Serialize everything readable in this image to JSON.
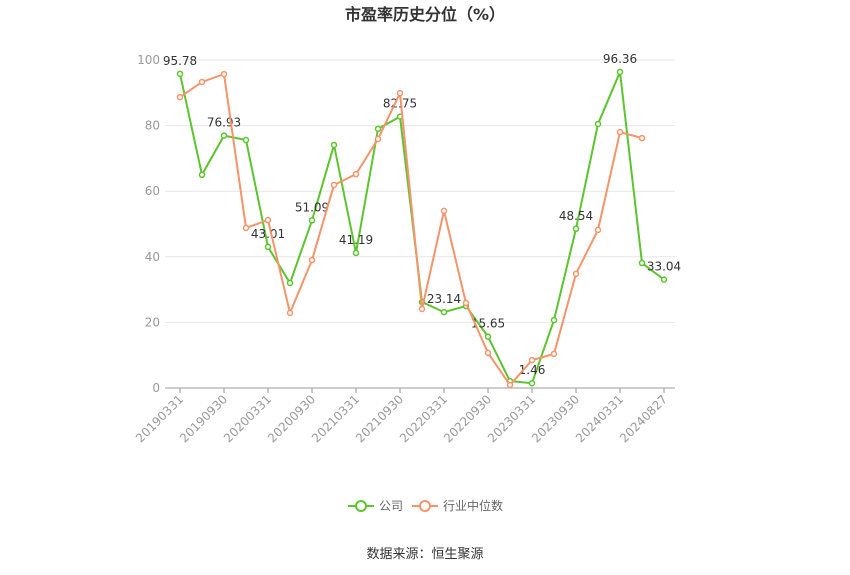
{
  "chart_data": {
    "type": "line",
    "title": "市盈率历史分位（%）",
    "categories": [
      "20190331",
      null,
      "20190930",
      null,
      "20200331",
      null,
      "20200930",
      null,
      "20210331",
      null,
      "20210930",
      null,
      "20220331",
      null,
      "20220930",
      null,
      "20230331",
      null,
      "20230930",
      null,
      "20240331",
      null,
      "20240827"
    ],
    "series": [
      {
        "name": "公司",
        "color": "#5cc42f",
        "values": [
          95.78,
          65,
          76.93,
          75.6,
          43.01,
          32,
          51.09,
          74.1,
          41.19,
          79,
          82.75,
          26.2,
          23.14,
          25,
          15.65,
          2.1,
          1.46,
          20.7,
          48.54,
          80.5,
          96.36,
          38.1,
          33.04
        ],
        "value_labels": [
          "95.78",
          null,
          "76.93",
          null,
          "43.01",
          null,
          "51.09",
          null,
          "41.19",
          null,
          "82.75",
          null,
          "23.14",
          null,
          "15.65",
          null,
          "1.46",
          null,
          "48.54",
          null,
          "96.36",
          null,
          "33.04"
        ]
      },
      {
        "name": "行业中位数",
        "color": "#f4946b",
        "values": [
          88.7,
          93.3,
          95.7,
          48.8,
          51.2,
          22.9,
          39,
          61.9,
          65.2,
          75.9,
          89.9,
          24.1,
          54,
          25.9,
          10.7,
          0.9,
          8.5,
          10.4,
          34.8,
          48.2,
          78,
          76.2,
          null
        ]
      }
    ],
    "ylim": [
      0,
      100
    ],
    "yticks": [
      0,
      20,
      40,
      60,
      80,
      100
    ],
    "grid": true,
    "legend": "bottom",
    "source": "数据来源：恒生聚源"
  }
}
